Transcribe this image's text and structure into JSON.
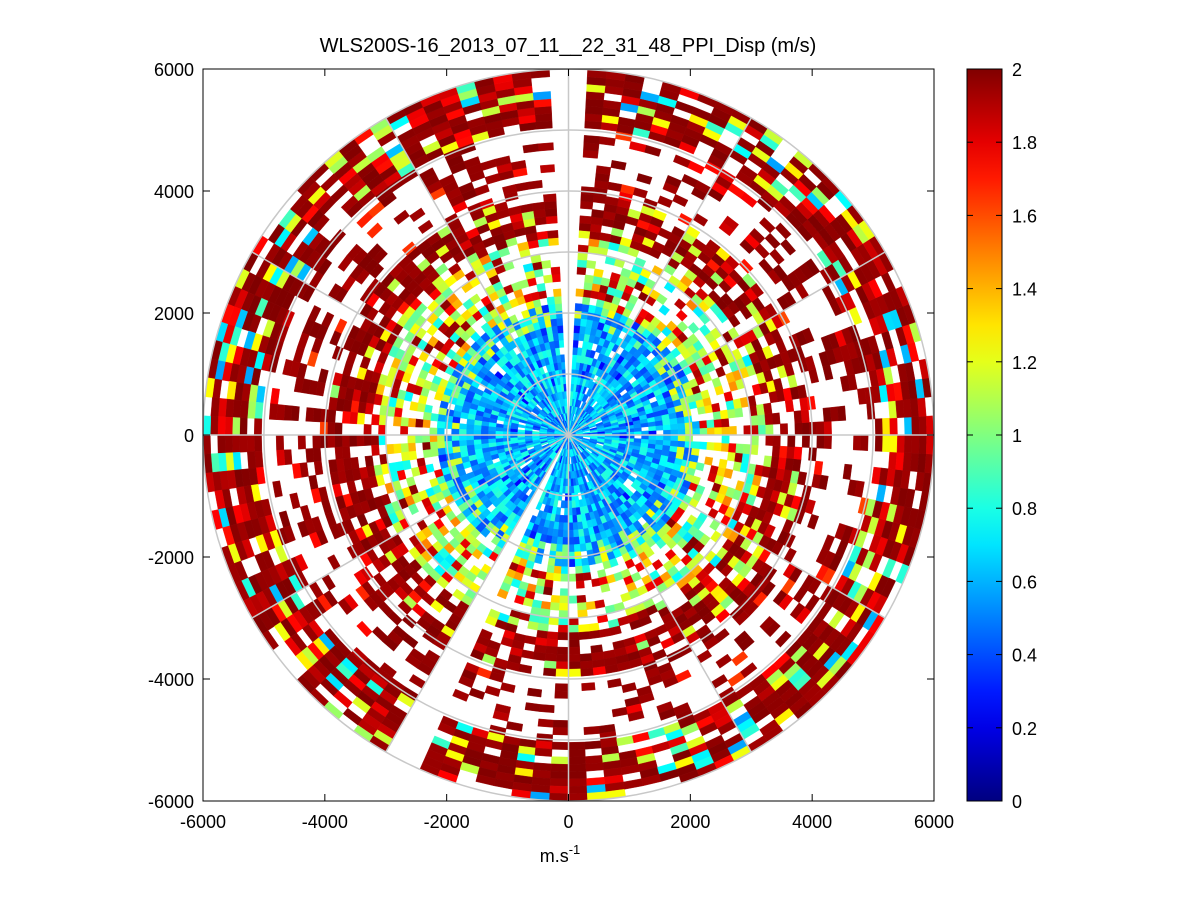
{
  "chart_data": {
    "type": "heatmap",
    "subtype": "polar-ppi",
    "title": "WLS200S-16_2013_07_11__22_31_48_PPI_Disp (m/s)",
    "xlabel_base": "m.s",
    "xlabel_sup": "-1",
    "ylabel": "",
    "xlim": [
      -6000,
      6000
    ],
    "ylim": [
      -6000,
      6000
    ],
    "xticks": [
      -6000,
      -4000,
      -2000,
      0,
      2000,
      4000,
      6000
    ],
    "yticks": [
      6000,
      4000,
      2000,
      0,
      -2000,
      -4000,
      -6000
    ],
    "xtick_labels": [
      "-6000",
      "-4000",
      "-2000",
      "0",
      "2000",
      "4000",
      "6000"
    ],
    "ytick_labels": [
      "6000",
      "4000",
      "2000",
      "0",
      "-2000",
      "-4000",
      "-6000"
    ],
    "colorbar": {
      "colormap": "jet",
      "range": [
        0,
        2
      ],
      "ticks": [
        0,
        0.2,
        0.4,
        0.6,
        0.8,
        1,
        1.2,
        1.4,
        1.6,
        1.8,
        2
      ],
      "tick_labels": [
        "0",
        "0.2",
        "0.4",
        "0.6",
        "0.8",
        "1",
        "1.2",
        "1.4",
        "1.6",
        "1.8",
        "2"
      ]
    },
    "polar_grid": {
      "ring_radii": [
        1000,
        2000,
        3000,
        4000,
        5000,
        6000
      ],
      "spoke_angles_deg": [
        0,
        30,
        60,
        90,
        120,
        150,
        180,
        210,
        240,
        270,
        300,
        330
      ],
      "color": "#c8c8c8"
    },
    "data_extent": {
      "max_range": 6000,
      "gates_azimuth_deg": 3,
      "gates_range_m": 120,
      "blank_sectors_deg": [
        [
          88.5,
          91.5
        ],
        [
          239,
          247
        ]
      ]
    },
    "description_zones": [
      {
        "r_min": 0,
        "r_max": 2200,
        "typical_value": 0.65,
        "note": "mostly light blue/cyan near lidar"
      },
      {
        "r_min": 2200,
        "r_max": 3200,
        "typical_value": 1.15,
        "note": "green/yellow transition"
      },
      {
        "r_min": 3200,
        "r_max": 4000,
        "typical_value": 1.95,
        "note": "dense dark red ring"
      },
      {
        "r_min": 4000,
        "r_max": 5000,
        "typical_value": 1.95,
        "note": "sparse dark red, many missing gates"
      },
      {
        "r_min": 5000,
        "r_max": 6000,
        "typical_value": 1.9,
        "note": "dense red/dark red outer ring"
      }
    ],
    "colors": {
      "axes_frame": "#000000",
      "grid": "#c8c8c8",
      "background": "#ffffff"
    }
  }
}
